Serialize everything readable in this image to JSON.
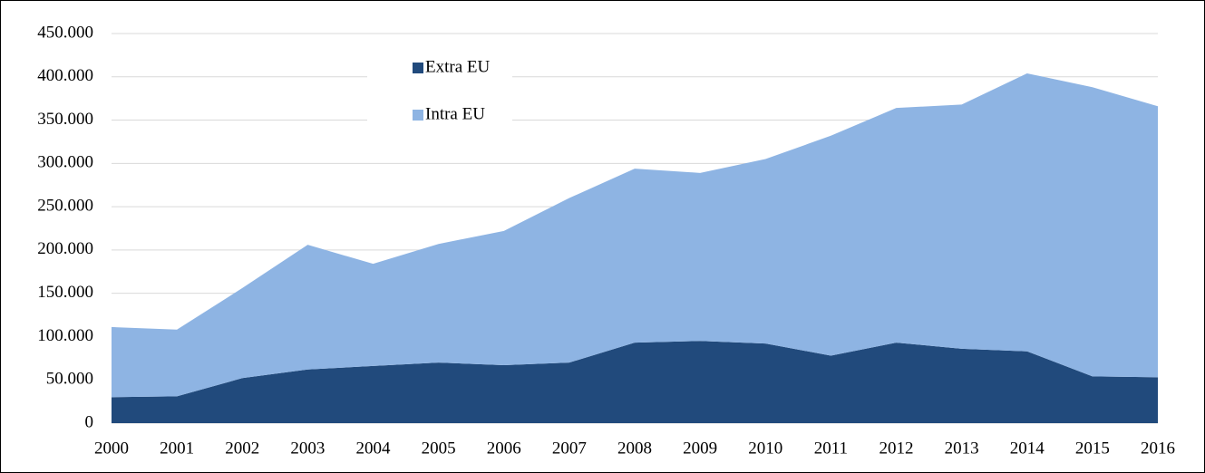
{
  "chart_data": {
    "type": "stacked_area",
    "categories": [
      "2000",
      "2001",
      "2002",
      "2003",
      "2004",
      "2005",
      "2006",
      "2007",
      "2008",
      "2009",
      "2010",
      "2011",
      "2012",
      "2013",
      "2014",
      "2015",
      "2016"
    ],
    "series": [
      {
        "name": "Extra EU",
        "color": "#214a7c",
        "values": [
          30000,
          31000,
          52000,
          62000,
          66000,
          70000,
          67000,
          70000,
          93000,
          95000,
          92000,
          78000,
          93000,
          86000,
          83000,
          54000,
          53000
        ]
      },
      {
        "name": "Intra EU",
        "color": "#8eb4e3",
        "values": [
          81000,
          77000,
          104000,
          144000,
          118000,
          137000,
          155000,
          190000,
          201000,
          194000,
          213000,
          254000,
          271000,
          282000,
          321000,
          334000,
          313000
        ]
      }
    ],
    "ylim": [
      0,
      450000
    ],
    "yticks": [
      0,
      {
        "value": 50000,
        "label": "50.000"
      },
      {
        "value": 100000,
        "label": "100.000"
      },
      {
        "value": 150000,
        "label": "150.000"
      },
      {
        "value": 200000,
        "label": "200.000"
      },
      {
        "value": 250000,
        "label": "250.000"
      },
      {
        "value": 300000,
        "label": "300.000"
      },
      {
        "value": 350000,
        "label": "350.000"
      },
      {
        "value": 400000,
        "label": "400.000"
      },
      {
        "value": 450000,
        "label": "450.000"
      }
    ],
    "grid": true,
    "legend": "top-left"
  }
}
